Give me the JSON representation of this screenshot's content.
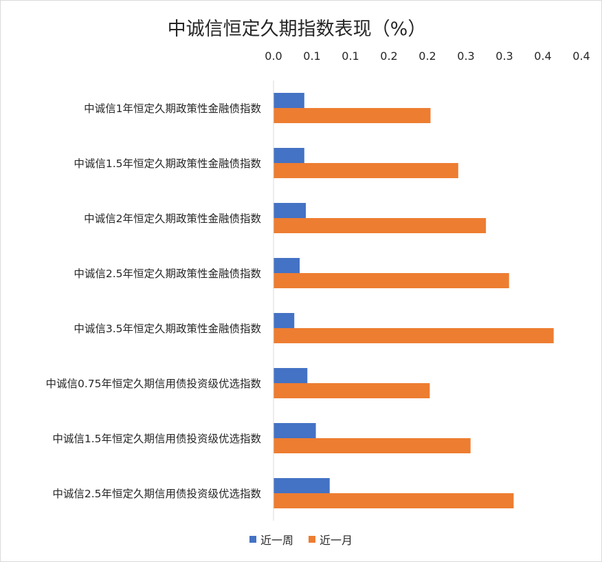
{
  "chart_data": {
    "type": "bar",
    "orientation": "horizontal",
    "title": "中诚信恒定久期指数表现（%）",
    "xlabel": "",
    "ylabel": "",
    "x_tick_labels": [
      "0.0",
      "0.1",
      "0.1",
      "0.2",
      "0.2",
      "0.3",
      "0.3",
      "0.4",
      "0.4"
    ],
    "xlim": [
      0,
      0.4
    ],
    "x_axis_position": "top",
    "grid": false,
    "legend_position": "bottom",
    "categories": [
      "中诚信1年恒定久期政策性金融债指数",
      "中诚信1.5年恒定久期政策性金融债指数",
      "中诚信2年恒定久期政策性金融债指数",
      "中诚信2.5年恒定久期政策性金融债指数",
      "中诚信3.5年恒定久期政策性金融债指数",
      "中诚信0.75年恒定久期信用债投资级优选指数",
      "中诚信1.5年恒定久期信用债投资级优选指数",
      "中诚信2.5年恒定久期信用债投资级优选指数"
    ],
    "series": [
      {
        "name": "近一周",
        "color": "#4472c4",
        "values": [
          0.04,
          0.04,
          0.042,
          0.034,
          0.027,
          0.044,
          0.055,
          0.073
        ]
      },
      {
        "name": "近一月",
        "color": "#ed7d31",
        "values": [
          0.204,
          0.24,
          0.276,
          0.306,
          0.364,
          0.203,
          0.256,
          0.312
        ]
      }
    ]
  }
}
